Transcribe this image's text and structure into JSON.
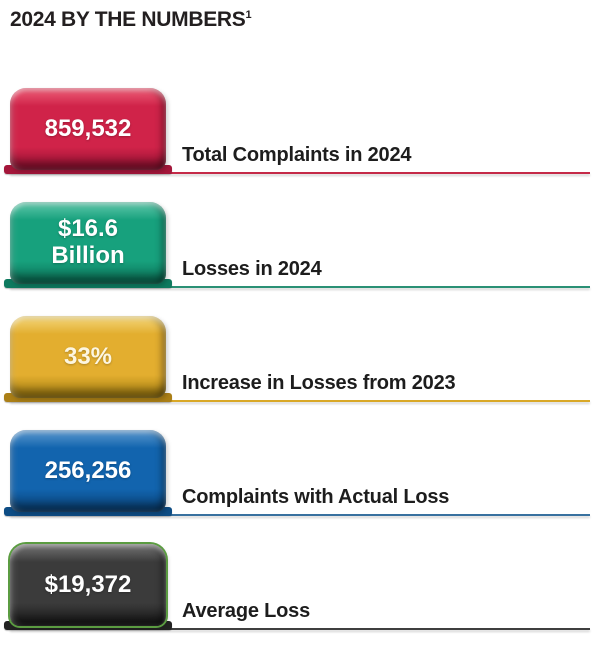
{
  "page": {
    "background": "#ffffff"
  },
  "title": {
    "text": "2024 BY THE NUMBERS",
    "superscript": "1"
  },
  "chart_data": {
    "type": "table",
    "title": "2024 BY THE NUMBERS",
    "rows": [
      {
        "value_lines": [
          "859,532"
        ],
        "numeric_value": 859532,
        "label": "Total Complaints in 2024",
        "colors": {
          "face": "#d02349",
          "light": "#ee6079",
          "dark": "#8f1030",
          "base": "#a4163a",
          "line": "#c52a48",
          "text": "#ffffff"
        }
      },
      {
        "value_lines": [
          "$16.6",
          "Billion"
        ],
        "numeric_value": 16600000000,
        "label": "Losses in 2024",
        "colors": {
          "face": "#17a17d",
          "light": "#62c8ab",
          "dark": "#0a6b52",
          "base": "#0e7a5f",
          "line": "#2a9075",
          "text": "#ffffff"
        }
      },
      {
        "value_lines": [
          "33%"
        ],
        "numeric_value": 33,
        "label": "Increase in Losses from 2023",
        "colors": {
          "face": "#e3ae2f",
          "light": "#f4d87e",
          "dark": "#9e7a0e",
          "base": "#ab7f16",
          "line": "#d9a827",
          "text": "#fdf6e0"
        }
      },
      {
        "value_lines": [
          "256,256"
        ],
        "numeric_value": 256256,
        "label": "Complaints with Actual Loss",
        "colors": {
          "face": "#1264ae",
          "light": "#5e9ad0",
          "dark": "#093f72",
          "base": "#0d4c84",
          "line": "#38719f",
          "text": "#ffffff"
        }
      },
      {
        "value_lines": [
          "$19,372"
        ],
        "numeric_value": 19372,
        "label": "Average Loss",
        "colors": {
          "face": "#3b3b3b",
          "light": "#757575",
          "dark": "#161616",
          "base": "#222222",
          "line": "#3f3f3f",
          "rim": "#5b9c41",
          "text": "#ffffff"
        }
      }
    ]
  }
}
